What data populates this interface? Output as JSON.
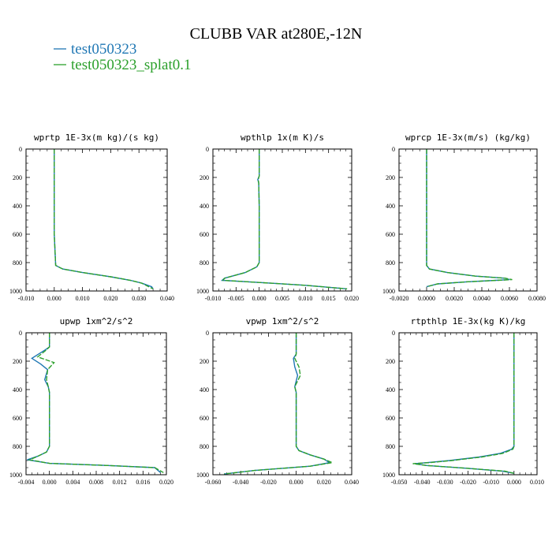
{
  "title": "CLUBB VAR at280E,-12N",
  "legend": [
    {
      "label": "test050323",
      "color": "#1f77b4"
    },
    {
      "label": "test050323_splat0.1",
      "color": "#2ca02c"
    }
  ],
  "chart_data": [
    {
      "type": "line",
      "title": "wprtp  1E-3x(m kg)/(s kg)",
      "xlim": [
        -0.01,
        0.04
      ],
      "ylim": [
        1000,
        0
      ],
      "xticks": [
        "-0.010",
        "0.000",
        "0.010",
        "0.020",
        "0.030",
        "0.040"
      ],
      "yticks": [
        "0",
        "200",
        "400",
        "600",
        "800",
        "1000"
      ],
      "series": [
        {
          "color": "#1f77b4",
          "x": [
            0.0,
            0.0,
            0.0,
            0.0,
            0.0005,
            0.003,
            0.01,
            0.02,
            0.027,
            0.031,
            0.0345,
            0.035
          ],
          "y": [
            0,
            200,
            400,
            600,
            820,
            845,
            870,
            900,
            925,
            945,
            970,
            985
          ]
        },
        {
          "color": "#2ca02c",
          "x": [
            0.0,
            0.0,
            0.0,
            0.0,
            0.0005,
            0.003,
            0.01,
            0.02,
            0.027,
            0.031,
            0.0335,
            0.035
          ],
          "y": [
            0,
            200,
            400,
            600,
            820,
            845,
            870,
            900,
            925,
            945,
            970,
            985
          ]
        }
      ]
    },
    {
      "type": "line",
      "title": "wpthlp  1x(m K)/s",
      "xlim": [
        -0.01,
        0.02
      ],
      "ylim": [
        1000,
        0
      ],
      "xticks": [
        "-0.010",
        "-0.005",
        "0.000",
        "0.005",
        "0.010",
        "0.015",
        "0.020"
      ],
      "yticks": [
        "0",
        "200",
        "400",
        "600",
        "800",
        "1000"
      ],
      "series": [
        {
          "color": "#1f77b4",
          "x": [
            0.0,
            0.0,
            -0.0003,
            -0.0001,
            0.0,
            0.0,
            -0.0005,
            -0.003,
            -0.0075,
            -0.008,
            0.0,
            0.01,
            0.019
          ],
          "y": [
            0,
            190,
            215,
            240,
            400,
            800,
            830,
            870,
            910,
            925,
            940,
            960,
            985
          ]
        },
        {
          "color": "#2ca02c",
          "x": [
            0.0,
            0.0,
            -0.0002,
            -0.0001,
            0.0,
            0.0,
            -0.0005,
            -0.003,
            -0.0075,
            -0.0078,
            0.0,
            0.01,
            0.019
          ],
          "y": [
            0,
            190,
            215,
            240,
            400,
            800,
            830,
            870,
            910,
            925,
            940,
            960,
            985
          ]
        }
      ]
    },
    {
      "type": "line",
      "title": "wprcp  1E-3x(m/s) (kg/kg)",
      "xlim": [
        -0.002,
        0.008
      ],
      "ylim": [
        1000,
        0
      ],
      "xticks": [
        "-0.0020",
        "0.0000",
        "0.0020",
        "0.0040",
        "0.0060",
        "0.0080"
      ],
      "yticks": [
        "0",
        "200",
        "400",
        "600",
        "800",
        "1000"
      ],
      "series": [
        {
          "color": "#1f77b4",
          "x": [
            0.0,
            0.0,
            0.0,
            0.0,
            0.0002,
            0.0015,
            0.0035,
            0.0057,
            0.006,
            0.003,
            0.0008,
            0.0
          ],
          "y": [
            0,
            400,
            600,
            820,
            845,
            870,
            895,
            910,
            920,
            935,
            950,
            970
          ]
        },
        {
          "color": "#2ca02c",
          "x": [
            0.0,
            0.0,
            0.0,
            0.0,
            0.0002,
            0.0015,
            0.0035,
            0.0057,
            0.0062,
            0.003,
            0.0008,
            0.0
          ],
          "y": [
            0,
            400,
            600,
            820,
            845,
            870,
            895,
            910,
            920,
            935,
            950,
            970
          ]
        }
      ]
    },
    {
      "type": "line",
      "title": "upwp  1xm^2/s^2",
      "xlim": [
        -0.004,
        0.02
      ],
      "ylim": [
        1000,
        0
      ],
      "xticks": [
        "-0.004",
        "0.000",
        "0.004",
        "0.008",
        "0.012",
        "0.016",
        "0.020"
      ],
      "yticks": [
        "0",
        "200",
        "400",
        "600",
        "800",
        "1000"
      ],
      "series": [
        {
          "color": "#1f77b4",
          "x": [
            0.0,
            0.0,
            -0.0007,
            -0.003,
            -0.0015,
            -0.0003,
            -0.0008,
            -0.0002,
            0.0,
            0.0,
            -0.0005,
            -0.002,
            -0.0038,
            0.0,
            0.01,
            0.018,
            0.019
          ],
          "y": [
            0,
            100,
            120,
            180,
            220,
            260,
            330,
            380,
            420,
            800,
            840,
            870,
            895,
            920,
            935,
            950,
            985
          ]
        },
        {
          "color": "#2ca02c",
          "x": [
            0.0,
            0.0,
            -0.0005,
            -0.002,
            0.0008,
            -0.0003,
            -0.0005,
            -0.0002,
            0.0,
            0.0,
            -0.0005,
            -0.002,
            -0.0034,
            0.0,
            0.01,
            0.018,
            0.0195
          ],
          "y": [
            0,
            100,
            120,
            170,
            210,
            260,
            330,
            380,
            420,
            800,
            840,
            870,
            895,
            920,
            935,
            950,
            985
          ]
        }
      ]
    },
    {
      "type": "line",
      "title": "vpwp  1xm^2/s^2",
      "xlim": [
        -0.06,
        0.04
      ],
      "ylim": [
        1000,
        0
      ],
      "xticks": [
        "-0.060",
        "-0.040",
        "-0.020",
        "0.000",
        "0.020",
        "0.040"
      ],
      "yticks": [
        "0",
        "200",
        "400",
        "600",
        "800",
        "1000"
      ],
      "series": [
        {
          "color": "#1f77b4",
          "x": [
            0.0,
            0.0,
            -0.002,
            -0.001,
            0.001,
            0.0,
            -0.001,
            0.0,
            0.0,
            0.002,
            0.01,
            0.02,
            0.024,
            0.01,
            -0.03,
            -0.052
          ],
          "y": [
            0,
            150,
            180,
            240,
            300,
            340,
            380,
            420,
            800,
            830,
            860,
            890,
            915,
            940,
            970,
            995
          ]
        },
        {
          "color": "#2ca02c",
          "x": [
            0.0,
            0.0,
            -0.001,
            0.002,
            0.003,
            0.001,
            -0.001,
            0.0,
            0.0,
            0.002,
            0.01,
            0.02,
            0.026,
            0.01,
            -0.03,
            -0.052
          ],
          "y": [
            0,
            150,
            180,
            240,
            300,
            340,
            380,
            420,
            800,
            830,
            860,
            890,
            915,
            940,
            970,
            995
          ]
        }
      ]
    },
    {
      "type": "line",
      "title": "rtpthlp  1E-3x(kg K)/kg",
      "xlim": [
        -0.05,
        0.01
      ],
      "ylim": [
        1000,
        0
      ],
      "xticks": [
        "-0.050",
        "-0.040",
        "-0.030",
        "-0.020",
        "-0.010",
        "0.000",
        "0.010"
      ],
      "yticks": [
        "0",
        "200",
        "400",
        "600",
        "800",
        "1000"
      ],
      "series": [
        {
          "color": "#1f77b4",
          "x": [
            0.0,
            0.0,
            0.0,
            0.0,
            -0.001,
            -0.006,
            -0.015,
            -0.028,
            -0.038,
            -0.043,
            -0.038,
            -0.02,
            -0.005,
            0.0
          ],
          "y": [
            0,
            400,
            600,
            800,
            820,
            850,
            875,
            900,
            915,
            922,
            935,
            955,
            975,
            990
          ]
        },
        {
          "color": "#2ca02c",
          "x": [
            0.0,
            0.0,
            0.0,
            0.0,
            -0.0005,
            -0.005,
            -0.014,
            -0.027,
            -0.037,
            -0.044,
            -0.038,
            -0.02,
            -0.004,
            0.0
          ],
          "y": [
            0,
            400,
            600,
            800,
            820,
            850,
            875,
            900,
            915,
            922,
            935,
            955,
            975,
            990
          ]
        }
      ]
    }
  ]
}
